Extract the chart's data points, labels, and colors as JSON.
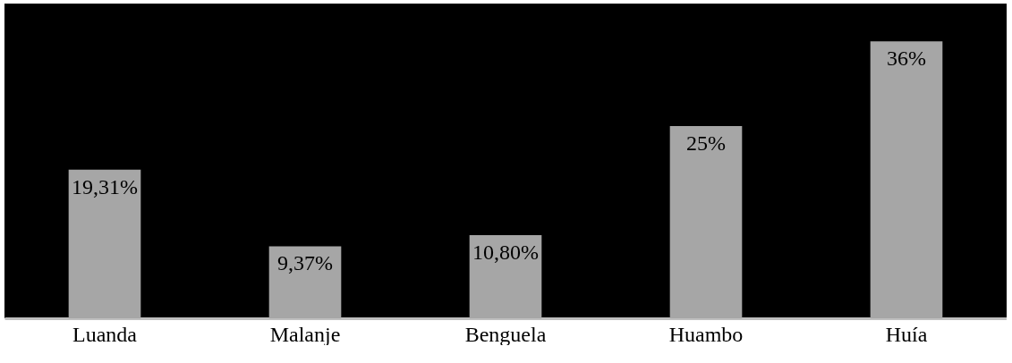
{
  "chart_data": {
    "type": "bar",
    "categories": [
      "Luanda",
      "Malanje",
      "Benguela",
      "Huambo",
      "Huía"
    ],
    "values": [
      19.31,
      9.37,
      10.8,
      25,
      36
    ],
    "color": "#a6a6a6",
    "value_labels": [
      "19,31%",
      "9,37%",
      "10,80%",
      "25%",
      "36%"
    ]
  }
}
